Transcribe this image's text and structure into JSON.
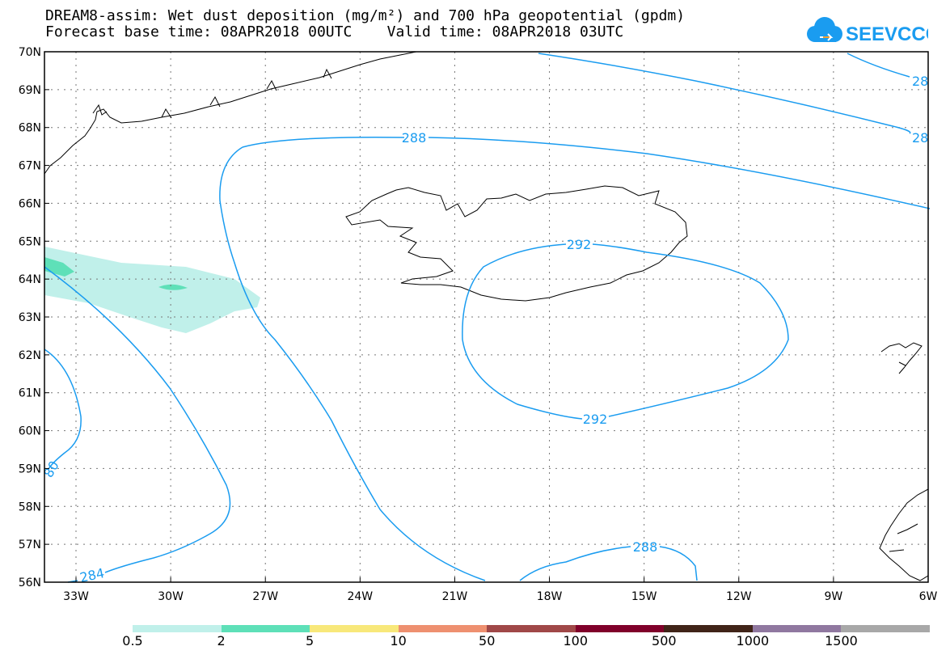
{
  "header": {
    "line1": "DREAM8-assim: Wet dust deposition (mg/m²) and 700 hPa geopotential (gpdm)",
    "line2": "Forecast base time: 08APR2018 00UTC    Valid time: 08APR2018 03UTC"
  },
  "logo": {
    "text": "SEEVCCC",
    "icon": "cloud-icon",
    "color": "#1a9cf0"
  },
  "map": {
    "lat_labels": [
      "70N",
      "69N",
      "68N",
      "67N",
      "66N",
      "65N",
      "64N",
      "63N",
      "62N",
      "61N",
      "60N",
      "59N",
      "58N",
      "57N",
      "56N"
    ],
    "lon_labels": [
      "33W",
      "30W",
      "27W",
      "24W",
      "21W",
      "18W",
      "15W",
      "12W",
      "9W",
      "6W"
    ],
    "contour_color": "#1a9cf0",
    "contour_labels": [
      "288",
      "292",
      "292",
      "288",
      "284",
      "80",
      "28",
      "28"
    ]
  },
  "colorbar": {
    "labels": [
      "0.5",
      "2",
      "5",
      "10",
      "50",
      "100",
      "500",
      "1000",
      "1500"
    ],
    "colors": [
      "#c0f0ea",
      "#5ee0b8",
      "#f8e87a",
      "#ee9070",
      "#a04848",
      "#80002a",
      "#402418",
      "#9078a0",
      "#a8a8a8"
    ]
  }
}
